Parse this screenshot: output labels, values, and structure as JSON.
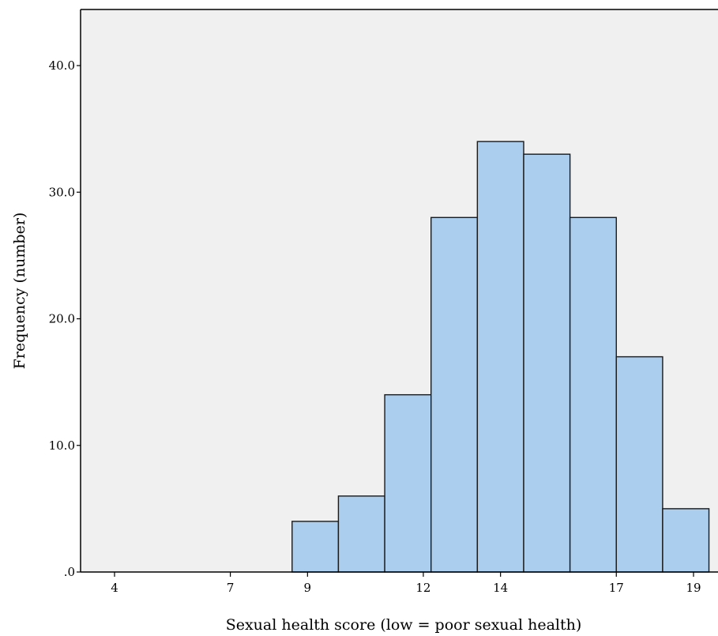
{
  "chart_data": {
    "type": "bar",
    "title": "",
    "xlabel": "Sexual health score (low = poor sexual health)",
    "ylabel": "Frequency (number)",
    "x_ticks": [
      "4",
      "7",
      "9",
      "12",
      "14",
      "17",
      "19"
    ],
    "y_ticks": [
      ".0",
      "10.0",
      "20.0",
      "30.0",
      "40.0"
    ],
    "ylim": [
      0,
      40
    ],
    "grid": false,
    "legend": "none",
    "bin_width": 1.2,
    "series": [
      {
        "bins": [
          {
            "x_start": 8.6,
            "x_end": 9.8,
            "value": 4
          },
          {
            "x_start": 9.8,
            "x_end": 11.0,
            "value": 6
          },
          {
            "x_start": 11.0,
            "x_end": 12.2,
            "value": 14
          },
          {
            "x_start": 12.2,
            "x_end": 13.4,
            "value": 28
          },
          {
            "x_start": 13.4,
            "x_end": 14.6,
            "value": 34
          },
          {
            "x_start": 14.6,
            "x_end": 15.8,
            "value": 33
          },
          {
            "x_start": 15.8,
            "x_end": 17.0,
            "value": 28
          },
          {
            "x_start": 17.0,
            "x_end": 18.2,
            "value": 17
          },
          {
            "x_start": 18.2,
            "x_end": 19.4,
            "value": 5
          }
        ]
      }
    ],
    "colors": {
      "bar_fill": "#abcdee",
      "bar_stroke": "#1a1a1a",
      "plot_background": "#f0f0f0",
      "axis": "#000000"
    }
  }
}
